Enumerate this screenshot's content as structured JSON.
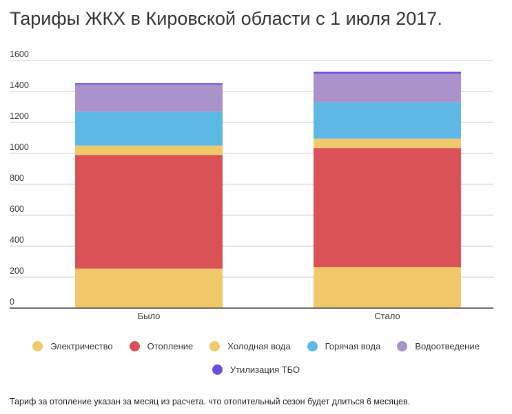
{
  "title": "Тарифы ЖКХ в Кировской области с 1 июля 2017.",
  "footnote": "Тариф за отопление указан за месяц из расчета. что отопительный сезон будет длиться 6 месяцев.",
  "chart_data": {
    "type": "bar",
    "stacked": true,
    "title": "Тарифы ЖКХ в Кировской области с 1 июля 2017.",
    "xlabel": "",
    "ylabel": "",
    "ylim": [
      0,
      1600
    ],
    "yticks": [
      "0",
      "200",
      "400",
      "600",
      "800",
      "1000",
      "1200",
      "1400",
      "1600"
    ],
    "grid": true,
    "legend_position": "bottom",
    "categories": [
      "Было",
      "Стало"
    ],
    "series": [
      {
        "name": "Электричество",
        "color": "#F0C96A",
        "values": [
          255,
          265
        ]
      },
      {
        "name": "Отопление",
        "color": "#DA5257",
        "values": [
          735,
          770
        ]
      },
      {
        "name": "Холодная вода",
        "color": "#F0C96A",
        "values": [
          60,
          60
        ]
      },
      {
        "name": "Горячая вода",
        "color": "#5DB8E6",
        "values": [
          220,
          235
        ]
      },
      {
        "name": "Водоотведение",
        "color": "#AC92CA",
        "values": [
          175,
          185
        ]
      },
      {
        "name": "Утилизация ТБО",
        "color": "#6B4EE0",
        "values": [
          8,
          12
        ]
      }
    ]
  }
}
